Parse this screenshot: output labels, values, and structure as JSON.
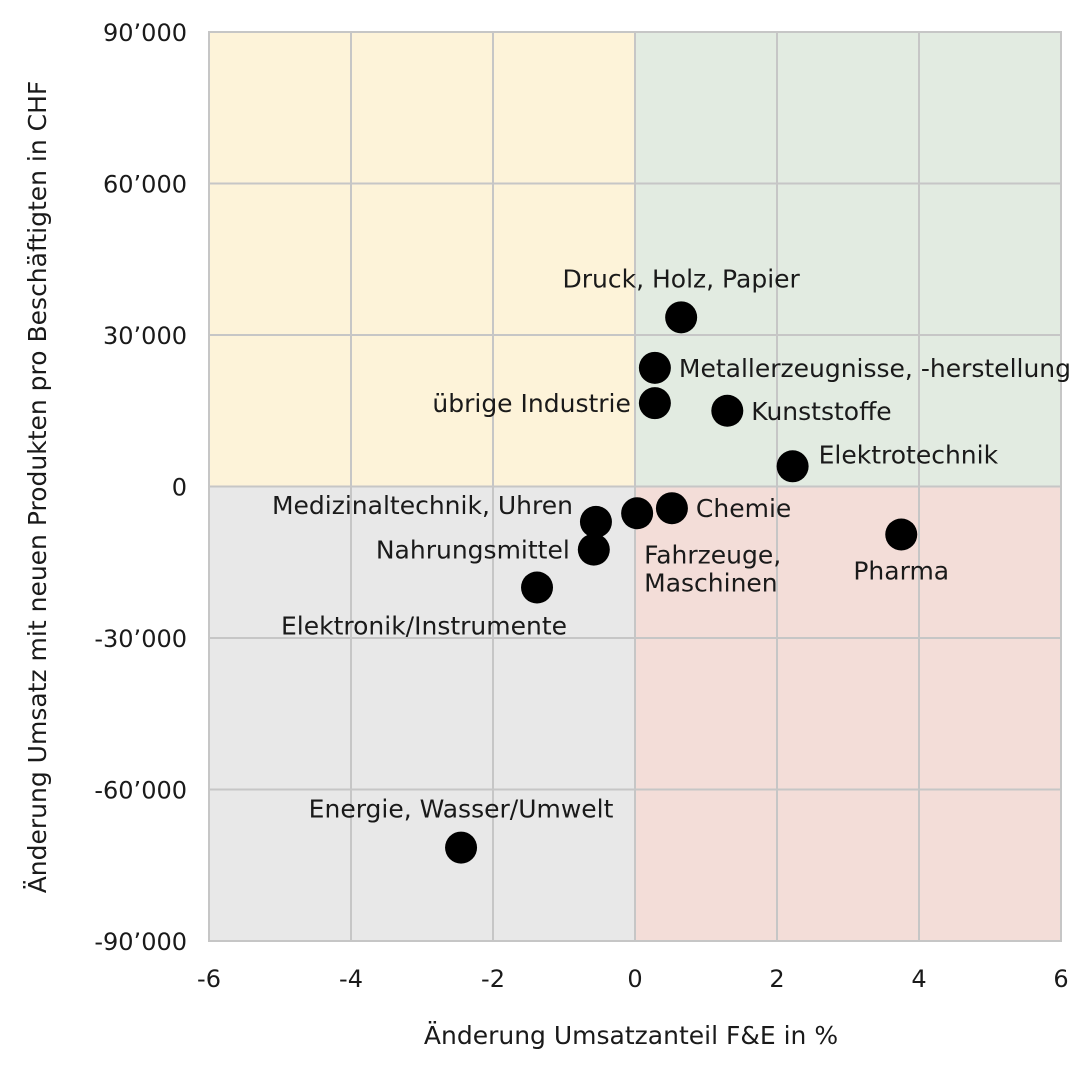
{
  "chart_data": {
    "type": "scatter",
    "title": "",
    "xlabel": "Änderung Umsatzanteil F&E in %",
    "ylabel": "Änderung Umsatz mit neuen Produkten pro Beschäftigten in CHF",
    "xlim": [
      -6,
      6
    ],
    "ylim": [
      -90000,
      90000
    ],
    "x_ticks": [
      -6,
      -4,
      -2,
      0,
      2,
      4,
      6
    ],
    "x_tick_labels": [
      "-6",
      "-4",
      "-2",
      "0",
      "2",
      "4",
      "6"
    ],
    "y_ticks": [
      90000,
      60000,
      30000,
      0,
      -30000,
      -60000,
      -90000
    ],
    "y_tick_labels": [
      "90’000",
      "60’000",
      "30’000",
      "0",
      "-30’000",
      "-60’000",
      "-90’000"
    ],
    "grid": true,
    "quadrants": [
      {
        "name": "top-left",
        "color": "#fdf3d9"
      },
      {
        "name": "top-right",
        "color": "#e2ebe1"
      },
      {
        "name": "bottom-left",
        "color": "#e8e8e8"
      },
      {
        "name": "bottom-right",
        "color": "#f3ddd8"
      }
    ],
    "point_color": "#000000",
    "points": [
      {
        "label": "Druck, Holz, Papier",
        "x": 0.65,
        "y": 33500,
        "label_pos": "above"
      },
      {
        "label": "Metallerzeugnisse, -herstellung",
        "x": 0.28,
        "y": 23500,
        "label_pos": "right"
      },
      {
        "label": "übrige Industrie",
        "x": 0.28,
        "y": 16500,
        "label_pos": "left"
      },
      {
        "label": "Kunststoffe",
        "x": 1.3,
        "y": 15000,
        "label_pos": "right"
      },
      {
        "label": "Elektrotechnik",
        "x": 2.22,
        "y": 4000,
        "label_pos": "right-above"
      },
      {
        "label": "Chemie",
        "x": 0.52,
        "y": -4300,
        "label_pos": "right"
      },
      {
        "label": "Fahrzeuge, Maschinen",
        "x": 0.03,
        "y": -5300,
        "label_pos": "below-right"
      },
      {
        "label": "Medizinaltechnik, Uhren",
        "x": -0.55,
        "y": -7000,
        "label_pos": "left-above"
      },
      {
        "label": "Nahrungsmittel",
        "x": -0.58,
        "y": -12500,
        "label_pos": "left"
      },
      {
        "label": "Elektronik/Instrumente",
        "x": -1.38,
        "y": -20000,
        "label_pos": "below-left"
      },
      {
        "label": "Pharma",
        "x": 3.75,
        "y": -9500,
        "label_pos": "below"
      },
      {
        "label": "Energie, Wasser/Umwelt",
        "x": -2.45,
        "y": -71500,
        "label_pos": "above"
      }
    ]
  }
}
